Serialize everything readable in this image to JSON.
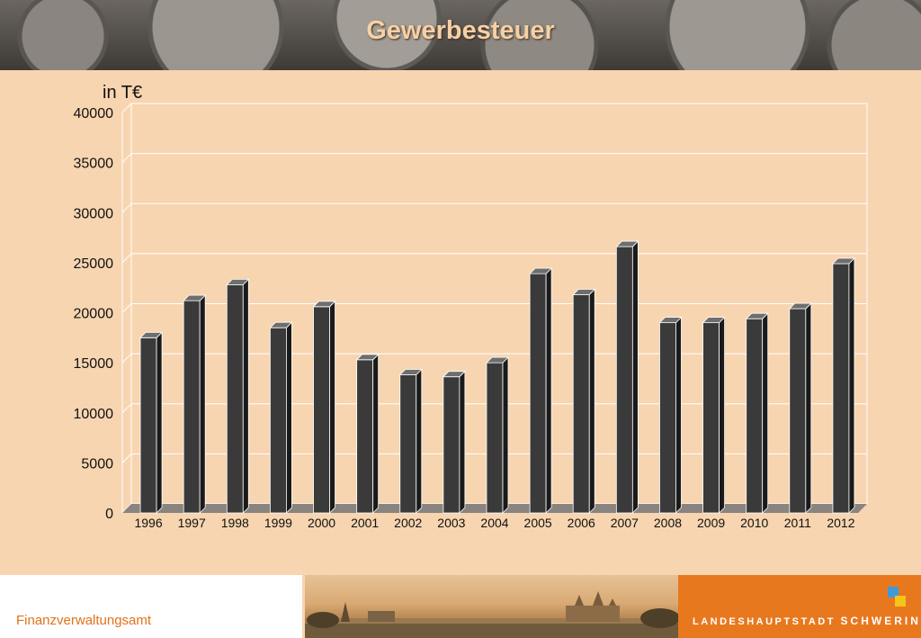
{
  "title": "Gewerbesteuer",
  "unit_label": "in T€",
  "footer": {
    "department": "Finanzverwaltungsamt",
    "logo_prefix": "LANDESHAUPTSTADT",
    "logo_city": "SCHWERIN"
  },
  "colors": {
    "background": "#f7d5b0",
    "bar_front": "#3a3a3a",
    "bar_side": "#1a1a1a",
    "bar_top": "#6e6e6e",
    "title": "#f6d0a6",
    "accent_orange": "#e8781e",
    "logo_blue": "#3e9ad8",
    "logo_yellow": "#f5c518"
  },
  "chart_data": {
    "type": "bar",
    "title": "Gewerbesteuer",
    "ylabel": "in T€",
    "xlabel": "",
    "categories": [
      "1996",
      "1997",
      "1998",
      "1999",
      "2000",
      "2001",
      "2002",
      "2003",
      "2004",
      "2005",
      "2006",
      "2007",
      "2008",
      "2009",
      "2010",
      "2011",
      "2012"
    ],
    "values": [
      17500,
      21200,
      22800,
      18500,
      20600,
      15300,
      13800,
      13600,
      15000,
      23900,
      21800,
      26600,
      19000,
      19000,
      19400,
      20400,
      24900
    ],
    "ylim": [
      0,
      40000
    ],
    "yticks": [
      0,
      5000,
      10000,
      15000,
      20000,
      25000,
      30000,
      35000,
      40000
    ],
    "grid": true,
    "style": "3d-column"
  }
}
